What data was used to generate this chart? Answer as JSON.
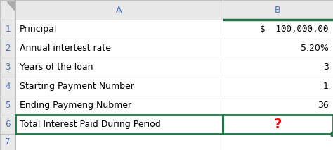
{
  "col_header_bg": "#e8e8e8",
  "row_header_bg": "#e8e8e8",
  "cell_bg": "#ffffff",
  "grid_color": "#c0c0c0",
  "header_text_color": "#4472c4",
  "cell_text_color": "#000000",
  "question_mark_color": "#ff0000",
  "selected_border_color": "#217346",
  "labels": [
    "Principal",
    "Annual intertest rate",
    "Years of the loan",
    "Starting Payment Number",
    "Ending Paymeng Nubmer",
    "Total Interest Paid During Period"
  ],
  "values": [
    "$  100,000.00",
    "5.20%",
    "3",
    "1",
    "36",
    "?"
  ],
  "figsize": [
    4.74,
    2.13
  ],
  "dpi": 100
}
